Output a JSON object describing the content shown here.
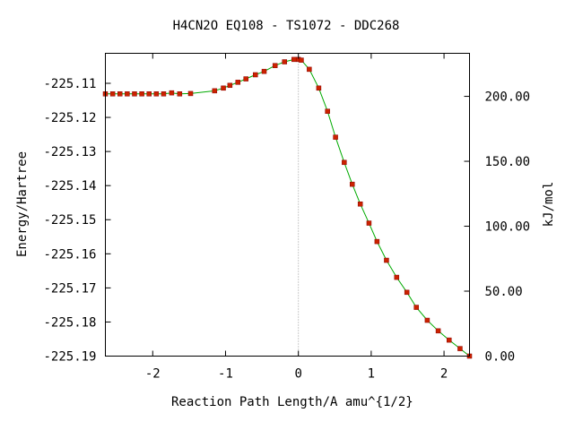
{
  "chart_data": {
    "type": "line",
    "title": "H4CN2O   EQ108 - TS1072 - DDC268",
    "xlabel": "Reaction Path Length/A amu^{1/2}",
    "ylabel": "Energy/Hartree",
    "y2label": "kJ/mol",
    "xlim": [
      -2.65,
      2.35
    ],
    "ylim": [
      -225.19,
      -225.1012
    ],
    "x_ticks": [
      -2,
      -1,
      0,
      1,
      2
    ],
    "x_tick_labels": [
      "-2",
      "-1",
      "0",
      "1",
      "2"
    ],
    "y_ticks": [
      -225.11,
      -225.12,
      -225.13,
      -225.14,
      -225.15,
      -225.16,
      -225.17,
      -225.18,
      -225.19
    ],
    "y_tick_labels": [
      "-225.11",
      "-225.12",
      "-225.13",
      "-225.14",
      "-225.15",
      "-225.16",
      "-225.17",
      "-225.18",
      "-225.19"
    ],
    "y2_ticks": [
      0,
      50,
      100,
      150,
      200
    ],
    "y2_tick_labels": [
      "0.00",
      "50.00",
      "100.00",
      "150.00",
      "200.00"
    ],
    "grid": false,
    "ts_marker_x": 0,
    "line_color": "#00aa00",
    "marker_color": "#cc2200",
    "series": [
      {
        "x": [
          -2.65,
          -2.55,
          -2.45,
          -2.35,
          -2.25,
          -2.15,
          -2.05,
          -1.95,
          -1.85,
          -1.74,
          -1.63,
          -1.48,
          -1.15,
          -1.03,
          -0.94,
          -0.83,
          -0.72,
          -0.59,
          -0.47,
          -0.32,
          -0.19,
          -0.06,
          0.0,
          0.04,
          0.15,
          0.28,
          0.4,
          0.51,
          0.63,
          0.74,
          0.85,
          0.97,
          1.08,
          1.21,
          1.35,
          1.49,
          1.62,
          1.77,
          1.92,
          2.07,
          2.22,
          2.35
        ],
        "y": [
          -225.1131,
          -225.1131,
          -225.1131,
          -225.1131,
          -225.1131,
          -225.1131,
          -225.1131,
          -225.1131,
          -225.1131,
          -225.1128,
          -225.1131,
          -225.113,
          -225.1122,
          -225.1114,
          -225.1106,
          -225.1097,
          -225.1087,
          -225.1075,
          -225.1065,
          -225.1048,
          -225.1037,
          -225.103,
          -225.103,
          -225.1032,
          -225.1059,
          -225.1114,
          -225.1182,
          -225.1258,
          -225.1332,
          -225.1396,
          -225.1454,
          -225.151,
          -225.1564,
          -225.1619,
          -225.1669,
          -225.1713,
          -225.1757,
          -225.1795,
          -225.1826,
          -225.1853,
          -225.1878,
          -225.19
        ]
      }
    ]
  }
}
